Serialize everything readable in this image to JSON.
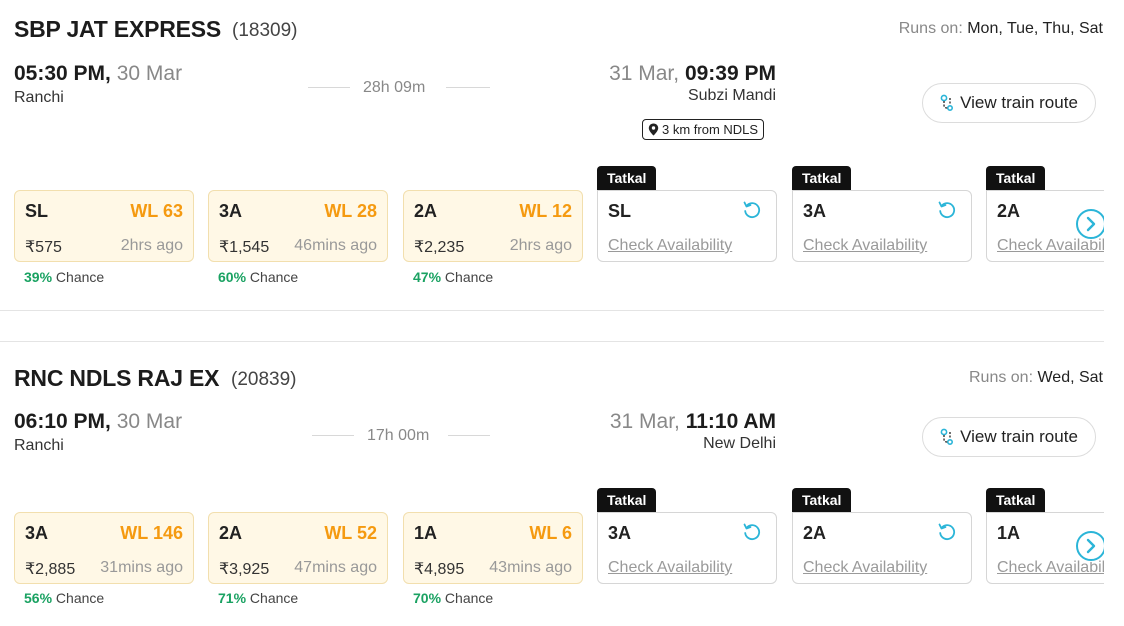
{
  "trains": [
    {
      "name": "SBP JAT EXPRESS",
      "number": "(18309)",
      "runs_label": "Runs on:",
      "runs_days": "Mon, Tue, Thu, Sat",
      "dep_time": "05:30 PM,",
      "dep_date": "30 Mar",
      "dep_city": "Ranchi",
      "duration": "28h 09m",
      "arr_date": "31 Mar,",
      "arr_time": "09:39 PM",
      "arr_city": "Subzi Mandi",
      "distance_badge": "3 km from NDLS",
      "route_button": "View train route",
      "classes": [
        {
          "cls": "SL",
          "status": "WL 63",
          "price": "₹575",
          "updated": "2hrs ago",
          "chance_pct": "39%",
          "chance_label": "Chance"
        },
        {
          "cls": "3A",
          "status": "WL 28",
          "price": "₹1,545",
          "updated": "46mins ago",
          "chance_pct": "60%",
          "chance_label": "Chance"
        },
        {
          "cls": "2A",
          "status": "WL 12",
          "price": "₹2,235",
          "updated": "2hrs ago",
          "chance_pct": "47%",
          "chance_label": "Chance"
        }
      ],
      "tatkal": [
        {
          "tag": "Tatkal",
          "cls": "SL",
          "action": "Check Availability"
        },
        {
          "tag": "Tatkal",
          "cls": "3A",
          "action": "Check Availability"
        },
        {
          "tag": "Tatkal",
          "cls": "2A",
          "action": "Check Availability"
        }
      ]
    },
    {
      "name": "RNC NDLS RAJ EX",
      "number": "(20839)",
      "runs_label": "Runs on:",
      "runs_days": "Wed, Sat",
      "dep_time": "06:10 PM,",
      "dep_date": "30 Mar",
      "dep_city": "Ranchi",
      "duration": "17h 00m",
      "arr_date": "31 Mar,",
      "arr_time": "11:10 AM",
      "arr_city": "New Delhi",
      "route_button": "View train route",
      "classes": [
        {
          "cls": "3A",
          "status": "WL 146",
          "price": "₹2,885",
          "updated": "31mins ago",
          "chance_pct": "56%",
          "chance_label": "Chance"
        },
        {
          "cls": "2A",
          "status": "WL 52",
          "price": "₹3,925",
          "updated": "47mins ago",
          "chance_pct": "71%",
          "chance_label": "Chance"
        },
        {
          "cls": "1A",
          "status": "WL 6",
          "price": "₹4,895",
          "updated": "43mins ago",
          "chance_pct": "70%",
          "chance_label": "Chance"
        }
      ],
      "tatkal": [
        {
          "tag": "Tatkal",
          "cls": "3A",
          "action": "Check Availability"
        },
        {
          "tag": "Tatkal",
          "cls": "2A",
          "action": "Check Availability"
        },
        {
          "tag": "Tatkal",
          "cls": "1A",
          "action": "Check Availability"
        }
      ]
    }
  ],
  "colors": {
    "waitlist": "#f59a10",
    "chance": "#1aa262",
    "accent": "#2bb5d8"
  },
  "icons": {
    "route": "route-icon",
    "location": "location-pin-icon",
    "refresh": "refresh-icon",
    "next": "chevron-right-icon"
  }
}
